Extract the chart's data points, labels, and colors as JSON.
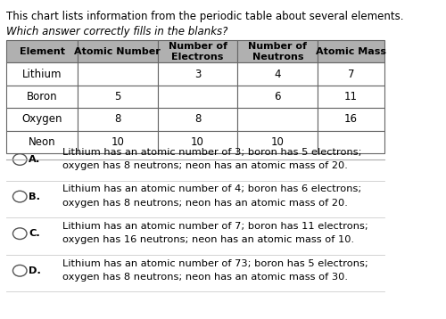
{
  "title_line1": "This chart lists information from the periodic table about several elements.",
  "title_line2": "Which answer correctly fills in the blanks?",
  "table_headers": [
    "Element",
    "Atomic Number",
    "Number of\nElectrons",
    "Number of\nNeutrons",
    "Atomic Mass"
  ],
  "table_rows": [
    [
      "Lithium",
      "",
      "3",
      "4",
      "7"
    ],
    [
      "Boron",
      "5",
      "",
      "6",
      "11"
    ],
    [
      "Oxygen",
      "8",
      "8",
      "",
      "16"
    ],
    [
      "Neon",
      "10",
      "10",
      "10",
      ""
    ]
  ],
  "header_bg": "#b0b0b0",
  "header_text": "#000000",
  "row_bg": "#ffffff",
  "border_color": "#666666",
  "options": [
    {
      "label": "A.",
      "line1": "Lithium has an atomic number of 3; boron has 5 electrons;",
      "line2": "oxygen has 8 neutrons; neon has an atomic mass of 20."
    },
    {
      "label": "B.",
      "line1": "Lithium has an atomic number of 4; boron has 6 electrons;",
      "line2": "oxygen has 8 neutrons; neon has an atomic mass of 20."
    },
    {
      "label": "C.",
      "line1": "Lithium has an atomic number of 7; boron has 11 electrons;",
      "line2": "oxygen has 16 neutrons; neon has an atomic mass of 10."
    },
    {
      "label": "D.",
      "line1": "Lithium has an atomic number of 73; boron has 5 electrons;",
      "line2": "oxygen has 8 neutrons; neon has an atomic mass of 30."
    }
  ],
  "bg_color": "#ffffff",
  "font_size_title": 8.5,
  "font_size_table": 8.5,
  "font_size_options": 8.2
}
